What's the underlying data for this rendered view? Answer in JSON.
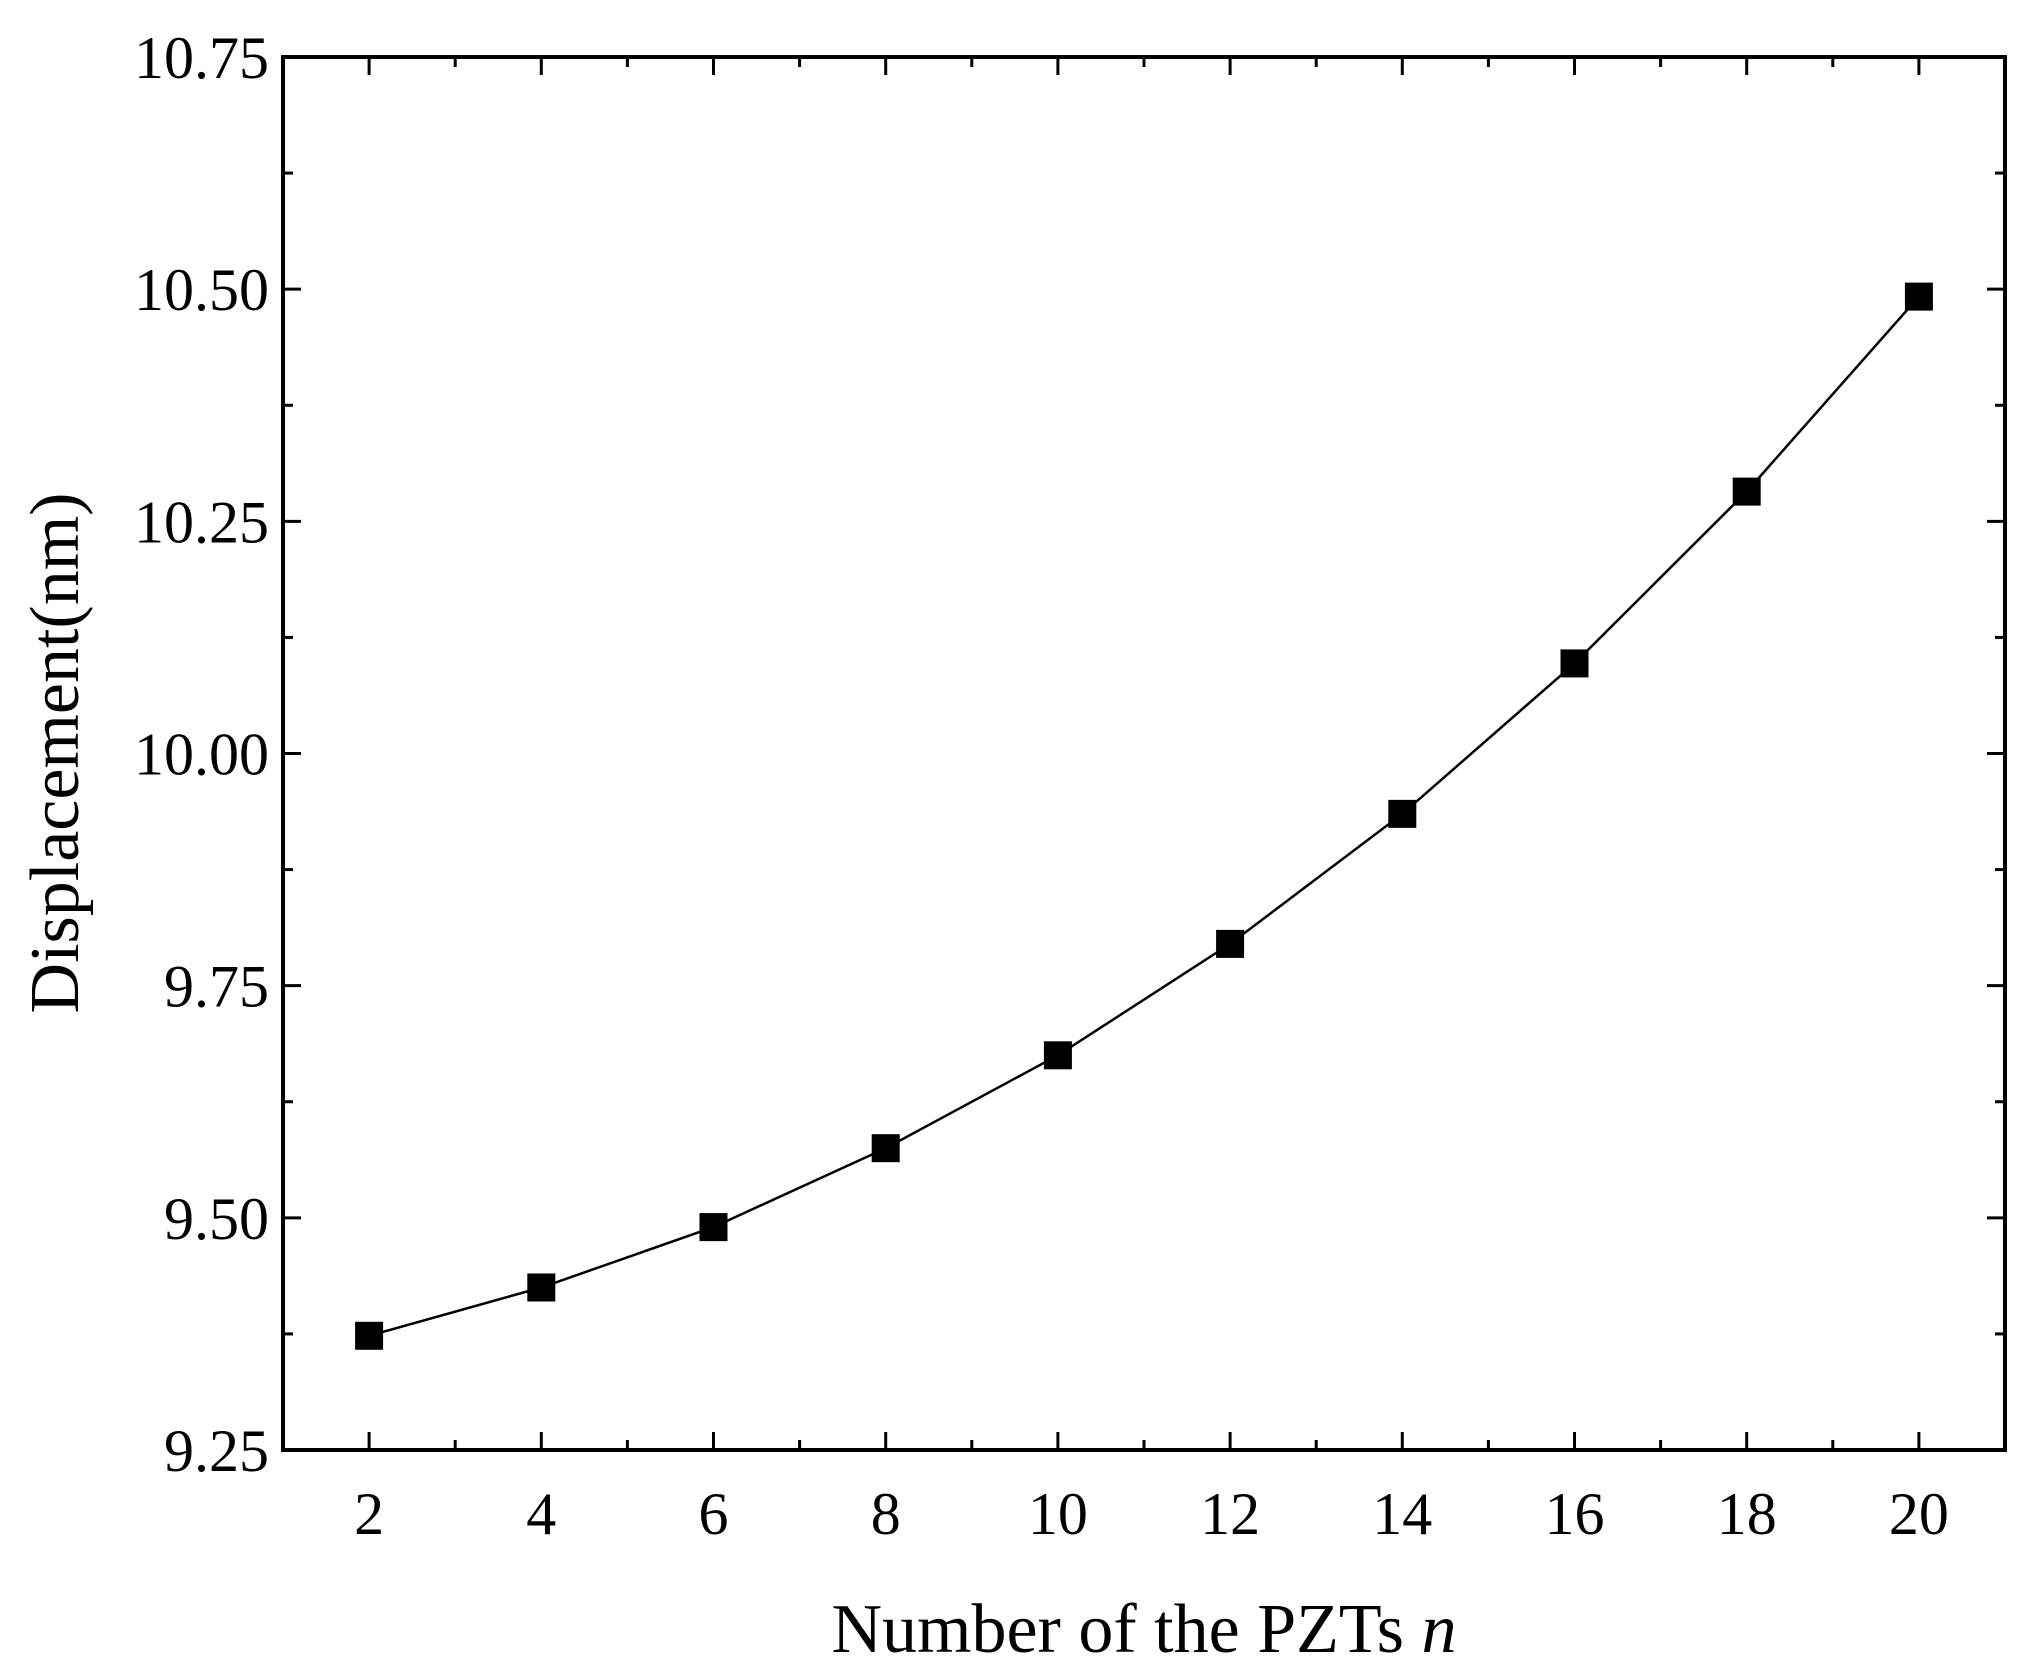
{
  "chart_data": {
    "type": "line",
    "title": "",
    "xlabel": "Number of the PZTs",
    "xlabel_var": "n",
    "ylabel": "Displacement(nm)",
    "xlim": [
      1,
      21
    ],
    "ylim": [
      9.25,
      10.75
    ],
    "x_ticks": [
      2,
      4,
      6,
      8,
      10,
      12,
      14,
      16,
      18,
      20
    ],
    "y_ticks": [
      9.25,
      9.5,
      9.75,
      10.0,
      10.25,
      10.5,
      10.75
    ],
    "y_tick_labels": [
      "9.25",
      "9.50",
      "9.75",
      "10.00",
      "10.25",
      "10.50",
      "10.75"
    ],
    "grid": false,
    "legend": "none",
    "series": [
      {
        "marker": "square",
        "color": "#000000",
        "x": [
          2,
          4,
          6,
          8,
          10,
          12,
          14,
          16,
          18,
          20
        ],
        "y": [
          9.373,
          9.425,
          9.49,
          9.575,
          9.675,
          9.795,
          9.935,
          10.097,
          10.282,
          10.492
        ]
      }
    ]
  }
}
